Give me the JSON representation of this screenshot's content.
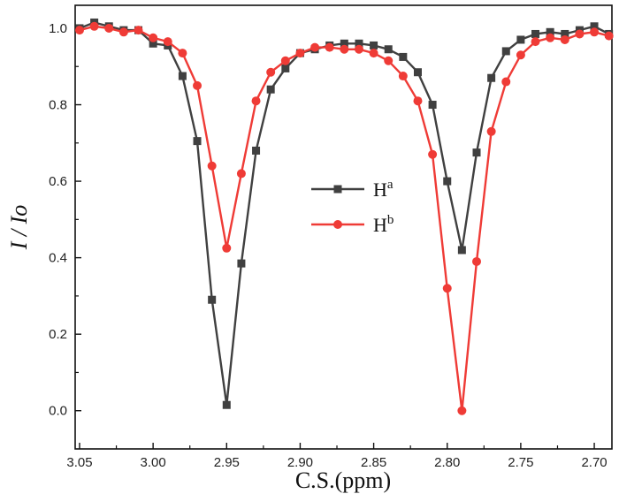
{
  "chart_data": {
    "type": "line",
    "xlabel": "C.S.(ppm)",
    "ylabel": "I / Io",
    "xlim": [
      3.053,
      2.688
    ],
    "x_reversed": true,
    "ylim": [
      -0.1,
      1.06
    ],
    "x_ticks": [
      3.05,
      3.0,
      2.95,
      2.9,
      2.85,
      2.8,
      2.75,
      2.7
    ],
    "x_tick_labels": [
      "3.05",
      "3.00",
      "2.95",
      "2.90",
      "2.85",
      "2.80",
      "2.75",
      "2.70"
    ],
    "y_ticks": [
      0.0,
      0.2,
      0.4,
      0.6,
      0.8,
      1.0
    ],
    "y_tick_labels": [
      "0.0",
      "0.2",
      "0.4",
      "0.6",
      "0.8",
      "1.0"
    ],
    "grid": false,
    "legend_position": "center",
    "series": [
      {
        "name": "H",
        "superscript": "a",
        "color": "#404040",
        "marker": "square",
        "x": [
          3.05,
          3.04,
          3.03,
          3.02,
          3.01,
          3.0,
          2.99,
          2.98,
          2.97,
          2.96,
          2.95,
          2.94,
          2.93,
          2.92,
          2.91,
          2.9,
          2.89,
          2.88,
          2.87,
          2.86,
          2.85,
          2.84,
          2.83,
          2.82,
          2.81,
          2.8,
          2.79,
          2.78,
          2.77,
          2.76,
          2.75,
          2.74,
          2.73,
          2.72,
          2.71,
          2.7,
          2.69
        ],
        "y": [
          1.0,
          1.015,
          1.005,
          0.995,
          0.995,
          0.96,
          0.955,
          0.875,
          0.705,
          0.29,
          0.015,
          0.385,
          0.68,
          0.84,
          0.895,
          0.935,
          0.945,
          0.955,
          0.96,
          0.96,
          0.955,
          0.945,
          0.925,
          0.885,
          0.8,
          0.6,
          0.42,
          0.675,
          0.87,
          0.94,
          0.97,
          0.985,
          0.99,
          0.985,
          0.995,
          1.005,
          0.985
        ]
      },
      {
        "name": "H",
        "superscript": "b",
        "color": "#ef3b36",
        "marker": "circle",
        "x": [
          3.05,
          3.04,
          3.03,
          3.02,
          3.01,
          3.0,
          2.99,
          2.98,
          2.97,
          2.96,
          2.95,
          2.94,
          2.93,
          2.92,
          2.91,
          2.9,
          2.89,
          2.88,
          2.87,
          2.86,
          2.85,
          2.84,
          2.83,
          2.82,
          2.81,
          2.8,
          2.79,
          2.78,
          2.77,
          2.76,
          2.75,
          2.74,
          2.73,
          2.72,
          2.71,
          2.7,
          2.69
        ],
        "y": [
          0.995,
          1.005,
          1.0,
          0.99,
          0.995,
          0.975,
          0.965,
          0.935,
          0.85,
          0.64,
          0.425,
          0.62,
          0.81,
          0.885,
          0.915,
          0.935,
          0.95,
          0.95,
          0.945,
          0.945,
          0.935,
          0.915,
          0.875,
          0.81,
          0.67,
          0.32,
          0.0,
          0.39,
          0.73,
          0.86,
          0.93,
          0.965,
          0.975,
          0.97,
          0.985,
          0.99,
          0.98
        ]
      }
    ]
  }
}
